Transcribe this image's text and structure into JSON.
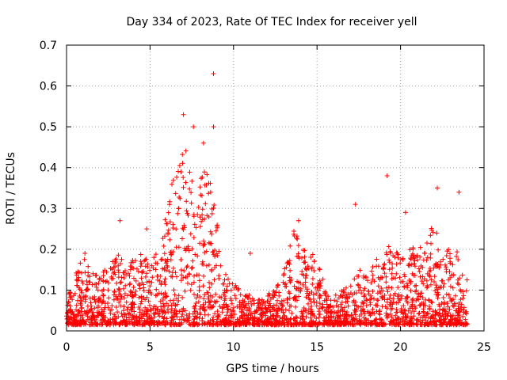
{
  "chart_data": {
    "type": "scatter",
    "title": "Day 334 of 2023, Rate Of TEC Index for receiver yell",
    "xlabel": "GPS time / hours",
    "ylabel": "ROTI / TECUs",
    "xlim": [
      0,
      25
    ],
    "ylim": [
      0,
      0.7
    ],
    "xticks": [
      0,
      5,
      10,
      15,
      20,
      25
    ],
    "yticks": [
      0,
      0.1,
      0.2,
      0.3,
      0.4,
      0.5,
      0.6,
      0.7
    ],
    "grid": true,
    "marker": "+",
    "color": "#ff0000",
    "data_range_hours": [
      0,
      24
    ],
    "envelope": {
      "description": "approximate upper envelope of ROTI vs hour (dense cloud below)",
      "x": [
        0,
        0.5,
        1,
        1.5,
        2,
        2.5,
        3,
        3.5,
        4,
        4.5,
        5,
        5.5,
        6,
        6.5,
        7,
        7.5,
        8,
        8.5,
        9,
        9.5,
        10,
        10.5,
        11,
        11.5,
        12,
        12.5,
        13,
        13.5,
        14,
        14.5,
        15,
        15.5,
        16,
        16.5,
        17,
        17.5,
        18,
        18.5,
        19,
        19.5,
        20,
        20.5,
        21,
        21.5,
        22,
        22.5,
        23,
        23.5,
        24
      ],
      "y": [
        0.08,
        0.14,
        0.18,
        0.15,
        0.14,
        0.17,
        0.2,
        0.16,
        0.18,
        0.19,
        0.17,
        0.2,
        0.3,
        0.4,
        0.45,
        0.42,
        0.38,
        0.4,
        0.3,
        0.14,
        0.12,
        0.1,
        0.09,
        0.08,
        0.09,
        0.1,
        0.14,
        0.25,
        0.24,
        0.18,
        0.2,
        0.1,
        0.09,
        0.1,
        0.12,
        0.15,
        0.14,
        0.18,
        0.22,
        0.2,
        0.19,
        0.2,
        0.21,
        0.24,
        0.26,
        0.22,
        0.2,
        0.2,
        0.14
      ]
    },
    "highlighted_points": [
      {
        "x": 8.8,
        "y": 0.63
      },
      {
        "x": 8.8,
        "y": 0.5
      },
      {
        "x": 7.0,
        "y": 0.53
      },
      {
        "x": 7.6,
        "y": 0.5
      },
      {
        "x": 8.2,
        "y": 0.46
      },
      {
        "x": 19.2,
        "y": 0.38
      },
      {
        "x": 22.2,
        "y": 0.35
      },
      {
        "x": 23.5,
        "y": 0.34
      },
      {
        "x": 17.3,
        "y": 0.31
      },
      {
        "x": 20.3,
        "y": 0.29
      },
      {
        "x": 3.2,
        "y": 0.27
      },
      {
        "x": 13.9,
        "y": 0.27
      },
      {
        "x": 4.8,
        "y": 0.25
      },
      {
        "x": 11.0,
        "y": 0.19
      },
      {
        "x": 1.1,
        "y": 0.19
      }
    ]
  }
}
